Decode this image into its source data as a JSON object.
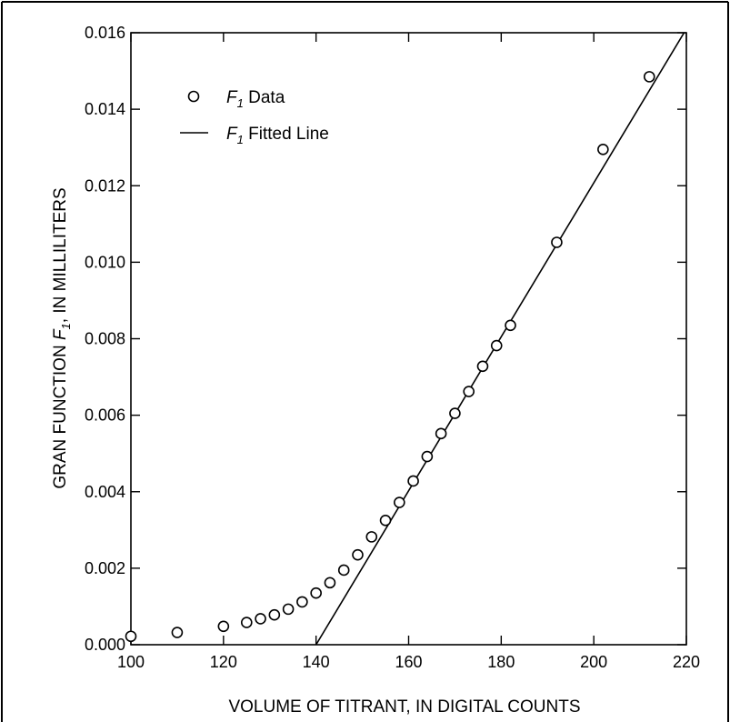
{
  "chart_data": {
    "type": "scatter",
    "xlabel": "VOLUME OF TITRANT, IN DIGITAL COUNTS",
    "ylabel": {
      "prefix": "GRAN FUNCTION ",
      "var": "F",
      "sub": "1",
      "suffix": ", IN MILLILITERS"
    },
    "xlim": [
      100,
      220
    ],
    "ylim": [
      0,
      0.016
    ],
    "x_ticks": [
      "100",
      "120",
      "140",
      "160",
      "180",
      "200",
      "220"
    ],
    "x_tick_values": [
      100,
      120,
      140,
      160,
      180,
      200,
      220
    ],
    "y_ticks": [
      "0.000",
      "0.002",
      "0.004",
      "0.006",
      "0.008",
      "0.010",
      "0.012",
      "0.014",
      "0.016"
    ],
    "y_tick_values": [
      0,
      0.002,
      0.004,
      0.006,
      0.008,
      0.01,
      0.012,
      0.014,
      0.016
    ],
    "grid": false,
    "legend_position": "top-left",
    "legend": [
      {
        "var": "F",
        "sub": "1",
        "text": " Data",
        "marker": "circle"
      },
      {
        "var": "F",
        "sub": "1",
        "text": " Fitted Line",
        "marker": "line"
      }
    ],
    "series": [
      {
        "kind": "points",
        "x": [
          100,
          110,
          120,
          125,
          128,
          131,
          134,
          137,
          140,
          143,
          146,
          149,
          152,
          155,
          158,
          161,
          164,
          167,
          170,
          173,
          176,
          179,
          182,
          192,
          202,
          212
        ],
        "y": [
          0.00022,
          0.00032,
          0.00048,
          0.00058,
          0.00068,
          0.00078,
          0.00093,
          0.00112,
          0.00135,
          0.00162,
          0.00195,
          0.00235,
          0.00282,
          0.00325,
          0.00372,
          0.00428,
          0.00492,
          0.00552,
          0.00605,
          0.00662,
          0.00728,
          0.00782,
          0.00835,
          0.01052,
          0.01295,
          0.01485
        ]
      },
      {
        "kind": "line",
        "x": [
          140,
          220
        ],
        "y": [
          0,
          0.0161
        ]
      }
    ]
  }
}
